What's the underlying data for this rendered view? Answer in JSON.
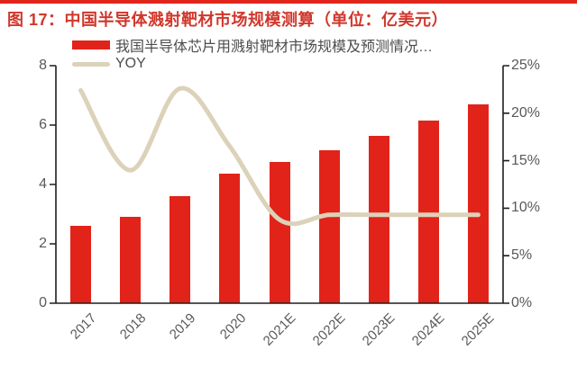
{
  "title": "图 17：中国半导体溅射靶材市场规模测算（单位：亿美元）",
  "legend": [
    {
      "label": "我国半导体芯片用溅射靶材市场规模及预测情况…",
      "type": "bar",
      "color": "#e2231a"
    },
    {
      "label": "YOY",
      "type": "line",
      "color": "#dcd2b9"
    }
  ],
  "colors": {
    "title_red": "#d0372b",
    "top_rule_red": "#e0251b",
    "bar_red": "#e2231a",
    "line_beige": "#dcd2b9",
    "axis_black": "#1f1f1f",
    "label_gray": "#595959"
  },
  "chart_data": {
    "type": "bar",
    "title": "图 17：中国半导体溅射靶材市场规模测算（单位：亿美元）",
    "categories": [
      "2017",
      "2018",
      "2019",
      "2020",
      "2021E",
      "2022E",
      "2023E",
      "2024E",
      "2025E"
    ],
    "series": [
      {
        "name": "我国半导体芯片用溅射靶材市场规模及预测情况…",
        "type": "bar",
        "axis": "left",
        "unit": "亿美元",
        "values": [
          2.6,
          2.9,
          3.6,
          4.35,
          4.75,
          5.15,
          5.65,
          6.15,
          6.7
        ],
        "color": "#e2231a"
      },
      {
        "name": "YOY",
        "type": "line",
        "axis": "right",
        "unit": "%",
        "values": [
          22.4,
          14.0,
          22.6,
          16.5,
          8.8,
          9.3,
          9.3,
          9.3,
          9.3
        ],
        "color": "#dcd2b9",
        "smooth": true
      }
    ],
    "left_axis": {
      "min": 0,
      "max": 8,
      "tick_labels": [
        "0",
        "2",
        "4",
        "6",
        "8"
      ]
    },
    "right_axis": {
      "min": 0,
      "max": 25,
      "tick_labels": [
        "0%",
        "5%",
        "10%",
        "15%",
        "20%",
        "25%"
      ]
    },
    "grid": false,
    "legend_position": "top-left"
  }
}
